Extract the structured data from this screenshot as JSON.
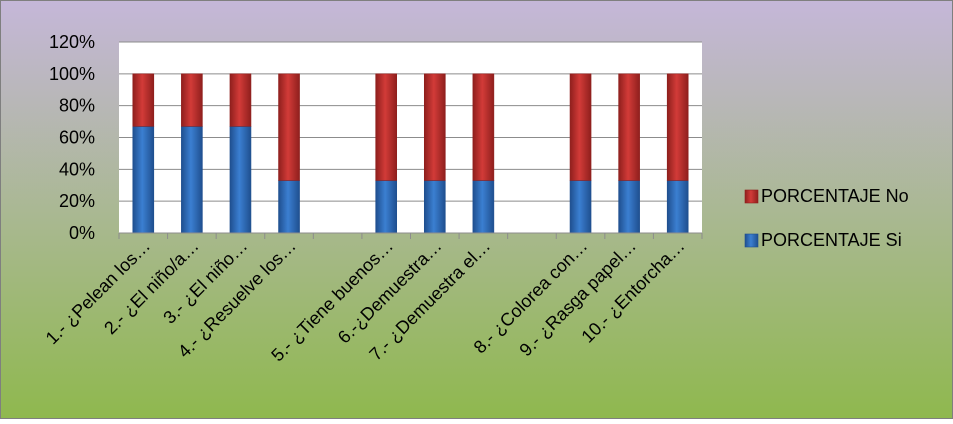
{
  "colors": {
    "background_top": "#c5b7d9",
    "background_bottom": "#8fb84e",
    "plot_area": "#ffffff",
    "gridline": "#8c8c8c",
    "series_si": "#3b7fd1",
    "series_si_dark": "#1f4f8f",
    "series_no": "#d23b38",
    "series_no_dark": "#8f1f1d"
  },
  "chart_data": {
    "type": "bar",
    "stacked": true,
    "categories": [
      "1.- ¿Pelean los…",
      "2.- ¿El niño/a…",
      "3.- ¿El niño…",
      "4.- ¿Resuelve los…",
      "",
      "5.- ¿Tiene buenos…",
      "6.-¿Demuestra…",
      "7.- ¿Demuestra el…",
      "",
      "8.- ¿Colorea con…",
      "9.- ¿Rasga papel…",
      "10.- ¿Entorcha…"
    ],
    "series": [
      {
        "name": "PORCENTAJE Si",
        "color": "#3b7fd1",
        "values": [
          67,
          67,
          67,
          33,
          null,
          33,
          33,
          33,
          null,
          33,
          33,
          33
        ]
      },
      {
        "name": "PORCENTAJE No",
        "color": "#d23b38",
        "values": [
          33,
          33,
          33,
          67,
          null,
          67,
          67,
          67,
          null,
          67,
          67,
          67
        ]
      }
    ],
    "ylim": [
      0,
      120
    ],
    "yticks": [
      0,
      20,
      40,
      60,
      80,
      100,
      120
    ],
    "ytick_labels": [
      "0%",
      "20%",
      "40%",
      "60%",
      "80%",
      "100%",
      "120%"
    ],
    "grid": true,
    "legend_placement": "right"
  }
}
